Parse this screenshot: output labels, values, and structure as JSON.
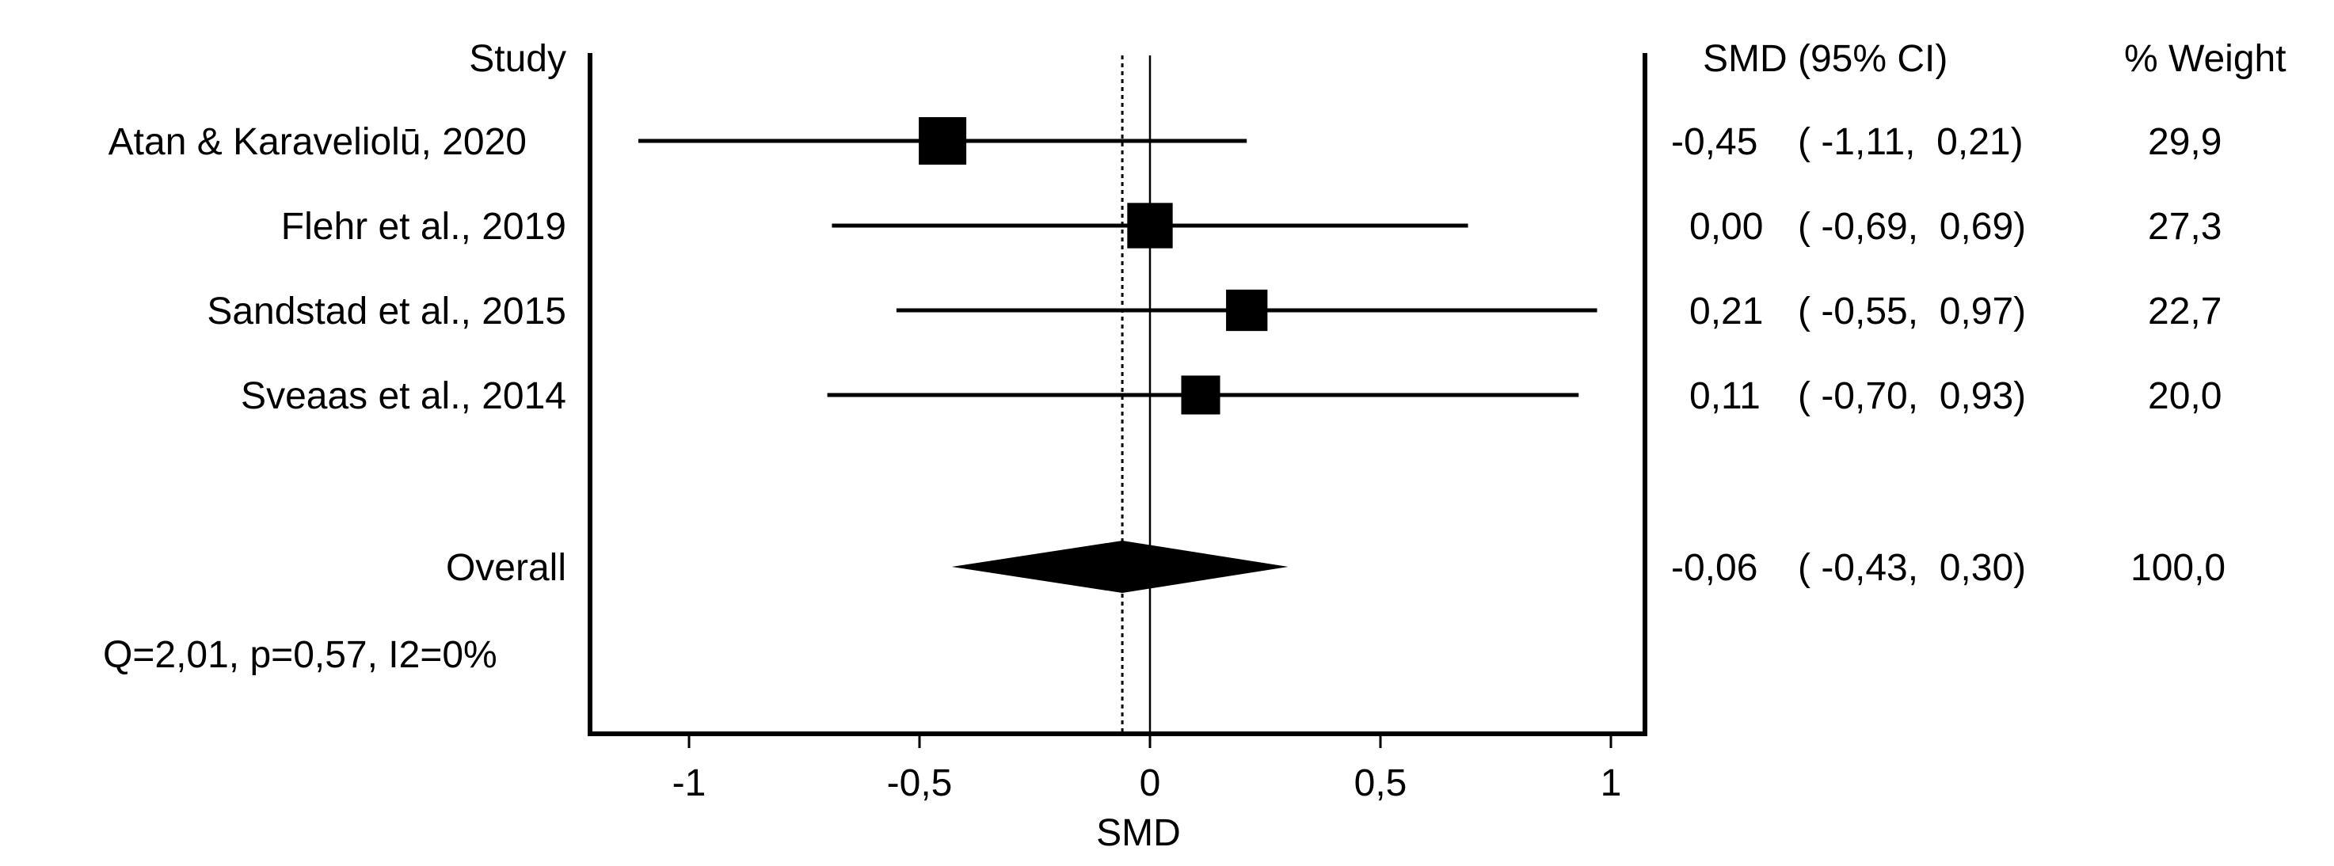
{
  "chart_data": {
    "type": "forest",
    "headers": {
      "study": "Study",
      "ci": "SMD (95% CI)",
      "weight": "% Weight"
    },
    "xlabel": "SMD",
    "xlim": [
      -1.2,
      1.08
    ],
    "xticks": [
      -1,
      -0.5,
      0,
      0.5,
      1
    ],
    "xtick_labels": [
      "-1",
      "-0,5",
      "0",
      "0,5",
      "1"
    ],
    "null_line": 0,
    "studies": [
      {
        "label": "Atan & Karaveliolū, 2020",
        "smd": -0.45,
        "lower": -1.11,
        "upper": 0.21,
        "weight": 29.9,
        "smd_text": "-0,45",
        "ci_text": "( -1,11,  0,21)",
        "weight_text": "29,9"
      },
      {
        "label": "Flehr et al., 2019",
        "smd": 0.0,
        "lower": -0.69,
        "upper": 0.69,
        "weight": 27.3,
        "smd_text": "0,00",
        "ci_text": "( -0,69,  0,69)",
        "weight_text": "27,3"
      },
      {
        "label": "Sandstad et al., 2015",
        "smd": 0.21,
        "lower": -0.55,
        "upper": 0.97,
        "weight": 22.7,
        "smd_text": "0,21",
        "ci_text": "( -0,55,  0,97)",
        "weight_text": "22,7"
      },
      {
        "label": "Sveaas et al., 2014",
        "smd": 0.11,
        "lower": -0.7,
        "upper": 0.93,
        "weight": 20.0,
        "smd_text": "0,11",
        "ci_text": "( -0,70,  0,93)",
        "weight_text": "20,0"
      }
    ],
    "overall": {
      "label": "Overall",
      "smd": -0.06,
      "lower": -0.43,
      "upper": 0.3,
      "weight": 100.0,
      "smd_text": "-0,06",
      "ci_text": "( -0,43,  0,30)",
      "weight_text": "100,0"
    },
    "heterogeneity": "Q=2,01, p=0,57, I2=0%"
  }
}
